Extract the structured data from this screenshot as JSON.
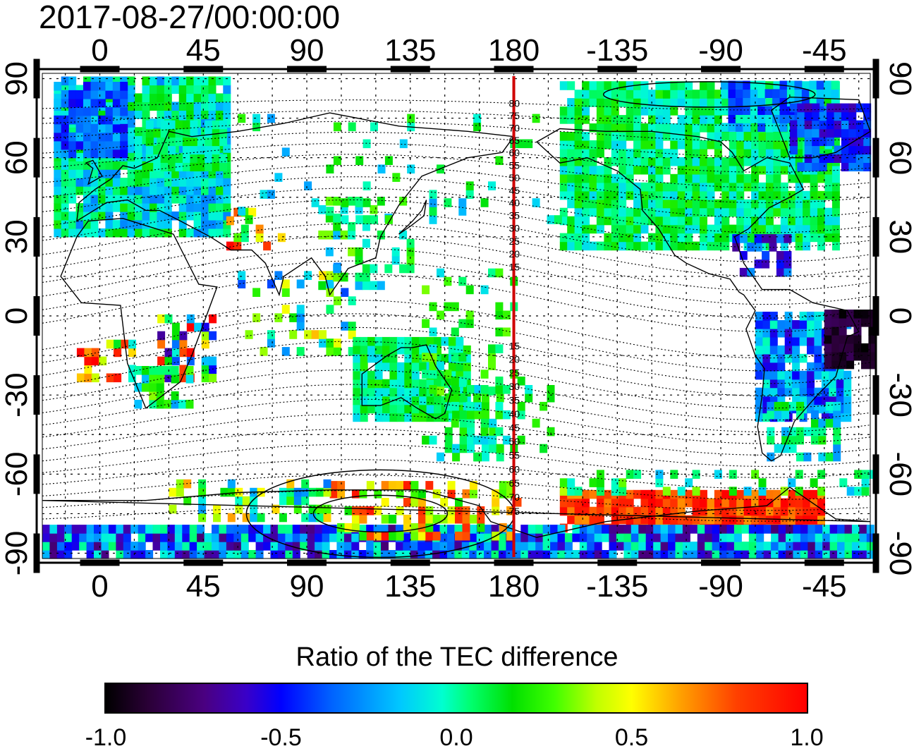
{
  "title": "2017-08-27/00:00:00",
  "map": {
    "x_ticks_top": [
      "0",
      "45",
      "90",
      "135",
      "180",
      "-135",
      "-90",
      "-45"
    ],
    "x_ticks_bottom": [
      "0",
      "45",
      "90",
      "135",
      "180",
      "-135",
      "-90",
      "-45"
    ],
    "y_ticks_left": [
      "90",
      "60",
      "30",
      "0",
      "-30",
      "-60",
      "-90"
    ],
    "y_ticks_right": [
      "90",
      "60",
      "30",
      "0",
      "-30",
      "-60",
      "-90"
    ],
    "contour_labels_north": [
      "80",
      "75",
      "70",
      "65",
      "60",
      "55",
      "50",
      "45",
      "40",
      "35",
      "30",
      "25",
      "20",
      "15"
    ],
    "contour_labels_south": [
      "15",
      "20",
      "25",
      "30",
      "35",
      "40",
      "45",
      "50",
      "55",
      "60",
      "65",
      "70",
      "75"
    ],
    "meridian_line_color": "#d00000",
    "lon_range": [
      -25,
      335
    ],
    "lat_range": [
      -92,
      92
    ]
  },
  "colorbar": {
    "title": "Ratio of the TEC difference",
    "ticks": [
      "-1.0",
      "-0.5",
      "0.0",
      "0.5",
      "1.0"
    ],
    "range": [
      -1.0,
      1.0
    ]
  },
  "colors": {
    "background": "#ffffff",
    "neutral_green": "#40e040",
    "negative_blue": "#0000ff",
    "positive_red": "#ff0000"
  }
}
